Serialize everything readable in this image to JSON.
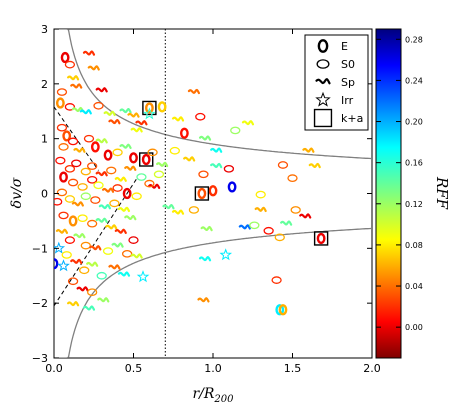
{
  "chart_data": {
    "type": "scatter",
    "xlabel": "r/R",
    "xlabel_sub": "200",
    "ylabel": "δv/σ",
    "xlim": [
      0.0,
      2.0
    ],
    "ylim": [
      -3,
      3
    ],
    "xticks": [
      "0.0",
      "0.5",
      "1.0",
      "1.5",
      "2.0"
    ],
    "yticks": [
      "−3",
      "−2",
      "−1",
      "0",
      "1",
      "2",
      "3"
    ],
    "vline_x": 0.7,
    "caustic_curve": "y = ±0.9/sqrt(x) (approx., clipped to ±3)",
    "dashed_line": {
      "x": [
        0.0,
        0.52
      ],
      "y": [
        -2.05,
        0.27
      ]
    },
    "dashed_line_upper": {
      "x": [
        0.0,
        0.28
      ],
      "y": [
        1.58,
        0.42
      ]
    },
    "legend": {
      "placement": "top-right",
      "entries": [
        {
          "label": "E",
          "marker": "E"
        },
        {
          "label": "S0",
          "marker": "S0"
        },
        {
          "label": "Sp",
          "marker": "Sp"
        },
        {
          "label": "Irr",
          "marker": "Irr"
        },
        {
          "label": "k+a",
          "marker": "ka"
        }
      ]
    },
    "colorbar": {
      "label": "RFF",
      "min": -0.03,
      "max": 0.29,
      "ticks": [
        "0.00",
        "0.04",
        "0.08",
        "0.12",
        "0.16",
        "0.20",
        "0.24",
        "0.28"
      ],
      "tick_values": [
        0.0,
        0.04,
        0.08,
        0.12,
        0.16,
        0.2,
        0.24,
        0.28
      ]
    },
    "points": [
      {
        "x": 0.07,
        "y": 2.48,
        "m": "E",
        "c": 0.0
      },
      {
        "x": 0.1,
        "y": 2.35,
        "m": "S0",
        "c": 0.02
      },
      {
        "x": 0.22,
        "y": 2.55,
        "m": "Sp",
        "c": 0.02
      },
      {
        "x": 0.12,
        "y": 2.1,
        "m": "Sp",
        "c": 0.07
      },
      {
        "x": 0.25,
        "y": 2.28,
        "m": "Sp",
        "c": 0.05
      },
      {
        "x": 0.05,
        "y": 1.85,
        "m": "S0",
        "c": 0.03
      },
      {
        "x": 0.14,
        "y": 1.95,
        "m": "Sp",
        "c": 0.04
      },
      {
        "x": 0.3,
        "y": 1.88,
        "m": "Sp",
        "c": 0.0
      },
      {
        "x": 0.04,
        "y": 1.65,
        "m": "E",
        "c": 0.05
      },
      {
        "x": 0.1,
        "y": 1.58,
        "m": "S0",
        "c": 0.01
      },
      {
        "x": 0.15,
        "y": 1.52,
        "m": "Sp",
        "c": 0.12
      },
      {
        "x": 0.2,
        "y": 1.48,
        "m": "Sp",
        "c": 0.18
      },
      {
        "x": 0.28,
        "y": 1.6,
        "m": "S0",
        "c": 0.03
      },
      {
        "x": 0.35,
        "y": 1.45,
        "m": "Sp",
        "c": 0.1
      },
      {
        "x": 0.38,
        "y": 1.3,
        "m": "Sp",
        "c": 0.03
      },
      {
        "x": 0.45,
        "y": 1.5,
        "m": "Sp",
        "c": 0.14
      },
      {
        "x": 0.5,
        "y": 1.42,
        "m": "Sp",
        "c": 0.06
      },
      {
        "x": 0.52,
        "y": 1.15,
        "m": "Sp",
        "c": 0.09
      },
      {
        "x": 0.55,
        "y": 1.28,
        "m": "Sp",
        "c": 0.02
      },
      {
        "x": 0.6,
        "y": 1.56,
        "m": "E",
        "c": 0.05,
        "ka": true
      },
      {
        "x": 0.6,
        "y": 1.45,
        "m": "Irr",
        "c": 0.16
      },
      {
        "x": 0.68,
        "y": 1.58,
        "m": "E",
        "c": 0.07
      },
      {
        "x": 0.05,
        "y": 1.2,
        "m": "S0",
        "c": 0.02
      },
      {
        "x": 0.08,
        "y": 1.05,
        "m": "E",
        "c": 0.03
      },
      {
        "x": 0.12,
        "y": 0.95,
        "m": "S0",
        "c": 0.01
      },
      {
        "x": 0.06,
        "y": 0.85,
        "m": "S0",
        "c": 0.04
      },
      {
        "x": 0.16,
        "y": 0.78,
        "m": "Sp",
        "c": 0.06
      },
      {
        "x": 0.22,
        "y": 1.0,
        "m": "S0",
        "c": 0.02
      },
      {
        "x": 0.26,
        "y": 0.85,
        "m": "E",
        "c": 0.01
      },
      {
        "x": 0.3,
        "y": 0.95,
        "m": "Sp",
        "c": 0.11
      },
      {
        "x": 0.34,
        "y": 0.7,
        "m": "E",
        "c": 0.0
      },
      {
        "x": 0.4,
        "y": 0.75,
        "m": "S0",
        "c": 0.07
      },
      {
        "x": 0.45,
        "y": 0.85,
        "m": "Sp",
        "c": 0.13
      },
      {
        "x": 0.5,
        "y": 0.65,
        "m": "E",
        "c": 0.0
      },
      {
        "x": 0.58,
        "y": 0.62,
        "m": "E",
        "c": 0.0,
        "ka": true
      },
      {
        "x": 0.62,
        "y": 0.75,
        "m": "S0",
        "c": 0.05
      },
      {
        "x": 0.68,
        "y": 0.52,
        "m": "Sp",
        "c": 0.12
      },
      {
        "x": 0.66,
        "y": 0.35,
        "m": "S0",
        "c": 0.1
      },
      {
        "x": 0.63,
        "y": 0.12,
        "m": "Sp",
        "c": 0.0
      },
      {
        "x": 0.6,
        "y": 0.18,
        "m": "S0",
        "c": 0.04
      },
      {
        "x": 0.55,
        "y": 0.3,
        "m": "S0",
        "c": 0.14
      },
      {
        "x": 0.48,
        "y": 0.45,
        "m": "Sp",
        "c": 0.05
      },
      {
        "x": 0.04,
        "y": 0.6,
        "m": "S0",
        "c": 0.01
      },
      {
        "x": 0.1,
        "y": 0.45,
        "m": "S0",
        "c": 0.02
      },
      {
        "x": 0.14,
        "y": 0.55,
        "m": "S0",
        "c": 0.0
      },
      {
        "x": 0.2,
        "y": 0.4,
        "m": "S0",
        "c": 0.06
      },
      {
        "x": 0.24,
        "y": 0.5,
        "m": "S0",
        "c": 0.03
      },
      {
        "x": 0.3,
        "y": 0.35,
        "m": "Sp",
        "c": 0.02
      },
      {
        "x": 0.36,
        "y": 0.42,
        "m": "S0",
        "c": 0.04
      },
      {
        "x": 0.42,
        "y": 0.25,
        "m": "Sp",
        "c": 0.08
      },
      {
        "x": 0.06,
        "y": 0.3,
        "m": "E",
        "c": 0.0
      },
      {
        "x": 0.12,
        "y": 0.2,
        "m": "S0",
        "c": 0.03
      },
      {
        "x": 0.18,
        "y": 0.12,
        "m": "S0",
        "c": 0.06
      },
      {
        "x": 0.24,
        "y": 0.25,
        "m": "S0",
        "c": 0.01
      },
      {
        "x": 0.28,
        "y": 0.15,
        "m": "S0",
        "c": 0.09
      },
      {
        "x": 0.34,
        "y": 0.05,
        "m": "Sp",
        "c": 0.04
      },
      {
        "x": 0.4,
        "y": 0.1,
        "m": "S0",
        "c": 0.02
      },
      {
        "x": 0.46,
        "y": 0.0,
        "m": "E",
        "c": 0.0
      },
      {
        "x": 0.52,
        "y": -0.05,
        "m": "S0",
        "c": 0.08
      },
      {
        "x": 0.05,
        "y": 0.02,
        "m": "S0",
        "c": 0.04
      },
      {
        "x": 0.02,
        "y": -0.15,
        "m": "S0",
        "c": 0.01
      },
      {
        "x": 0.1,
        "y": -0.1,
        "m": "S0",
        "c": 0.07
      },
      {
        "x": 0.15,
        "y": -0.2,
        "m": "Sp",
        "c": 0.05
      },
      {
        "x": 0.2,
        "y": -0.05,
        "m": "S0",
        "c": 0.12
      },
      {
        "x": 0.26,
        "y": -0.12,
        "m": "S0",
        "c": 0.03
      },
      {
        "x": 0.32,
        "y": -0.25,
        "m": "Sp",
        "c": 0.15
      },
      {
        "x": 0.38,
        "y": -0.18,
        "m": "S0",
        "c": 0.06
      },
      {
        "x": 0.44,
        "y": -0.3,
        "m": "Sp",
        "c": 0.09
      },
      {
        "x": 0.48,
        "y": -0.45,
        "m": "Sp",
        "c": 0.12
      },
      {
        "x": 0.06,
        "y": -0.4,
        "m": "S0",
        "c": 0.02
      },
      {
        "x": 0.12,
        "y": -0.5,
        "m": "E",
        "c": 0.05
      },
      {
        "x": 0.18,
        "y": -0.45,
        "m": "S0",
        "c": 0.08
      },
      {
        "x": 0.24,
        "y": -0.55,
        "m": "S0",
        "c": 0.04
      },
      {
        "x": 0.3,
        "y": -0.5,
        "m": "Sp",
        "c": 0.14
      },
      {
        "x": 0.36,
        "y": -0.62,
        "m": "Sp",
        "c": 0.07
      },
      {
        "x": 0.42,
        "y": -0.7,
        "m": "Sp",
        "c": 0.02
      },
      {
        "x": 0.5,
        "y": -0.85,
        "m": "S0",
        "c": 0.0
      },
      {
        "x": 0.05,
        "y": -0.7,
        "m": "Sp",
        "c": 0.06
      },
      {
        "x": 0.1,
        "y": -0.85,
        "m": "S0",
        "c": 0.01
      },
      {
        "x": 0.16,
        "y": -0.78,
        "m": "Sp",
        "c": 0.12
      },
      {
        "x": 0.2,
        "y": -0.95,
        "m": "S0",
        "c": 0.05
      },
      {
        "x": 0.26,
        "y": -1.0,
        "m": "Sp",
        "c": 0.03
      },
      {
        "x": 0.34,
        "y": -1.05,
        "m": "S0",
        "c": 0.09
      },
      {
        "x": 0.4,
        "y": -0.95,
        "m": "Sp",
        "c": 0.13
      },
      {
        "x": 0.46,
        "y": -1.1,
        "m": "S0",
        "c": 0.04
      },
      {
        "x": 0.52,
        "y": -1.15,
        "m": "Sp",
        "c": 0.1
      },
      {
        "x": 0.03,
        "y": -1.0,
        "m": "Irr",
        "c": 0.2
      },
      {
        "x": 0.08,
        "y": -1.12,
        "m": "S0",
        "c": 0.08
      },
      {
        "x": 0.14,
        "y": -1.25,
        "m": "Sp",
        "c": 0.02
      },
      {
        "x": 0.19,
        "y": -1.4,
        "m": "S0",
        "c": 0.06
      },
      {
        "x": 0.24,
        "y": -1.3,
        "m": "Sp",
        "c": 0.11
      },
      {
        "x": 0.3,
        "y": -1.5,
        "m": "S0",
        "c": 0.15
      },
      {
        "x": 0.38,
        "y": -1.35,
        "m": "Sp",
        "c": 0.04
      },
      {
        "x": 0.44,
        "y": -1.48,
        "m": "Sp",
        "c": 0.17
      },
      {
        "x": 0.0,
        "y": -1.28,
        "m": "E",
        "c": 0.26
      },
      {
        "x": 0.06,
        "y": -1.32,
        "m": "Irr",
        "c": 0.2
      },
      {
        "x": 0.12,
        "y": -1.6,
        "m": "S0",
        "c": 0.03
      },
      {
        "x": 0.18,
        "y": -1.75,
        "m": "Sp",
        "c": 0.0
      },
      {
        "x": 0.24,
        "y": -1.8,
        "m": "S0",
        "c": 0.05
      },
      {
        "x": 0.31,
        "y": -1.95,
        "m": "Sp",
        "c": 0.12
      },
      {
        "x": 0.12,
        "y": -2.02,
        "m": "Sp",
        "c": 0.07
      },
      {
        "x": 0.22,
        "y": -2.1,
        "m": "Sp",
        "c": 0.15
      },
      {
        "x": 0.56,
        "y": -1.52,
        "m": "Irr",
        "c": 0.18
      },
      {
        "x": 0.78,
        "y": 1.35,
        "m": "Sp",
        "c": 0.08
      },
      {
        "x": 0.88,
        "y": 1.85,
        "m": "Sp",
        "c": 0.04
      },
      {
        "x": 0.92,
        "y": 1.4,
        "m": "S0",
        "c": 0.01
      },
      {
        "x": 0.95,
        "y": 1.0,
        "m": "Sp",
        "c": 0.13
      },
      {
        "x": 0.76,
        "y": 0.78,
        "m": "S0",
        "c": 0.08
      },
      {
        "x": 0.85,
        "y": 0.62,
        "m": "Sp",
        "c": 0.07
      },
      {
        "x": 0.94,
        "y": 0.35,
        "m": "S0",
        "c": 0.03
      },
      {
        "x": 1.02,
        "y": 0.5,
        "m": "Sp",
        "c": 0.15
      },
      {
        "x": 1.0,
        "y": 0.05,
        "m": "E",
        "c": 0.02
      },
      {
        "x": 0.93,
        "y": 0.0,
        "m": "E",
        "c": 0.03,
        "ka": true
      },
      {
        "x": 1.12,
        "y": 0.12,
        "m": "E",
        "c": 0.26
      },
      {
        "x": 1.1,
        "y": 0.45,
        "m": "S0",
        "c": 0.0
      },
      {
        "x": 0.72,
        "y": -0.25,
        "m": "Sp",
        "c": 0.14
      },
      {
        "x": 0.78,
        "y": -0.35,
        "m": "Sp",
        "c": 0.08
      },
      {
        "x": 0.88,
        "y": -0.3,
        "m": "S0",
        "c": 0.06
      },
      {
        "x": 0.96,
        "y": -0.65,
        "m": "Sp",
        "c": 0.12
      },
      {
        "x": 0.95,
        "y": -1.2,
        "m": "Sp",
        "c": 0.17
      },
      {
        "x": 1.08,
        "y": -1.12,
        "m": "Irr",
        "c": 0.18
      },
      {
        "x": 0.94,
        "y": -1.95,
        "m": "Sp",
        "c": 0.05
      },
      {
        "x": 1.2,
        "y": -0.62,
        "m": "Sp",
        "c": 0.22
      },
      {
        "x": 1.26,
        "y": -0.58,
        "m": "S0",
        "c": 0.12
      },
      {
        "x": 1.3,
        "y": -0.3,
        "m": "Sp",
        "c": 0.06
      },
      {
        "x": 1.3,
        "y": -0.02,
        "m": "S0",
        "c": 0.08
      },
      {
        "x": 1.35,
        "y": -0.68,
        "m": "S0",
        "c": 0.01
      },
      {
        "x": 1.42,
        "y": -0.8,
        "m": "S0",
        "c": 0.06
      },
      {
        "x": 1.46,
        "y": -0.55,
        "m": "Sp",
        "c": 0.14
      },
      {
        "x": 1.44,
        "y": 0.52,
        "m": "S0",
        "c": 0.03
      },
      {
        "x": 1.5,
        "y": 0.28,
        "m": "S0",
        "c": 0.04
      },
      {
        "x": 1.52,
        "y": -0.3,
        "m": "S0",
        "c": 0.05
      },
      {
        "x": 1.6,
        "y": 0.78,
        "m": "Sp",
        "c": 0.06
      },
      {
        "x": 1.58,
        "y": -0.42,
        "m": "Sp",
        "c": 0.0
      },
      {
        "x": 1.64,
        "y": 0.5,
        "m": "Sp",
        "c": 0.07
      },
      {
        "x": 1.68,
        "y": -0.82,
        "m": "E",
        "c": 0.0,
        "ka": true
      },
      {
        "x": 1.4,
        "y": -1.58,
        "m": "S0",
        "c": 0.02
      },
      {
        "x": 1.42,
        "y": -2.12,
        "m": "E",
        "c": 0.18
      },
      {
        "x": 1.44,
        "y": -2.12,
        "m": "E",
        "c": 0.06
      },
      {
        "x": 1.22,
        "y": 1.28,
        "m": "Sp",
        "c": 0.09
      },
      {
        "x": 1.14,
        "y": 1.15,
        "m": "S0",
        "c": 0.12
      },
      {
        "x": 0.82,
        "y": 1.1,
        "m": "E",
        "c": 0.01
      },
      {
        "x": 1.02,
        "y": 0.78,
        "m": "Sp",
        "c": 0.17
      }
    ]
  }
}
